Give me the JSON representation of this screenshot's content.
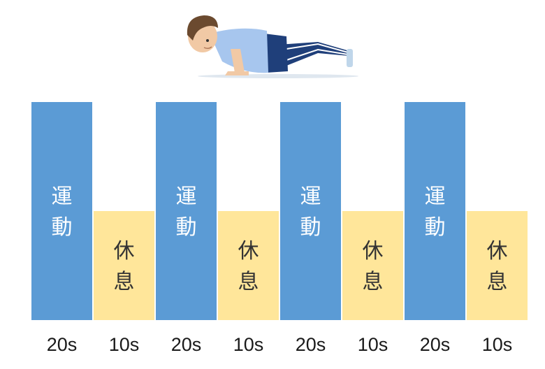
{
  "chart_data": {
    "type": "bar",
    "categories": [
      "20s",
      "10s",
      "20s",
      "10s",
      "20s",
      "10s",
      "20s",
      "10s"
    ],
    "values": [
      20,
      10,
      20,
      10,
      20,
      10,
      20,
      10
    ],
    "bar_labels": [
      "運動",
      "休息",
      "運動",
      "休息",
      "運動",
      "休息",
      "運動",
      "休息"
    ],
    "kinds": [
      "work",
      "rest",
      "work",
      "rest",
      "work",
      "rest",
      "work",
      "rest"
    ],
    "ylim": [
      0,
      20
    ],
    "grid": false,
    "colors": {
      "work": "#5B9BD5",
      "rest": "#FFE69A"
    }
  },
  "illustration": {
    "icon": "push-up-figure-icon"
  }
}
